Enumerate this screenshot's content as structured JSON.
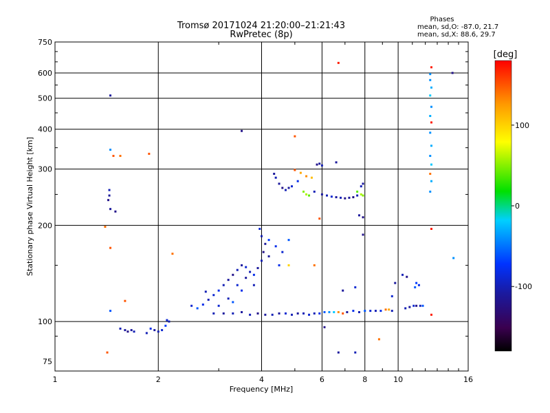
{
  "chart_data": {
    "type": "scatter",
    "title": "Tromsø 20171024 21:20:00–21:21:43",
    "subtitle": "RwPretec (8p)",
    "xlabel": "Frequency [MHz]",
    "ylabel": "Stationary phase Virtual Height [km]",
    "x_scale": "log",
    "y_scale": "log",
    "xlim": [
      1,
      16
    ],
    "ylim": [
      70,
      750
    ],
    "x_ticks": [
      1,
      2,
      4,
      6,
      8,
      10,
      16
    ],
    "x_tick_labels": [
      "1",
      "2",
      "4",
      "6",
      "8",
      "10",
      "16"
    ],
    "y_ticks": [
      75,
      100,
      200,
      300,
      400,
      500,
      600,
      750
    ],
    "y_tick_labels": [
      "75",
      "100",
      "200",
      "300",
      "400",
      "500",
      "600",
      "750"
    ],
    "grid": true,
    "legend": {
      "title": "Phases",
      "lines": [
        "mean, sd,O: -87.0, 21.7",
        "mean, sd,X: 88.6, 29.7"
      ],
      "placement": "top-right"
    },
    "colorbar": {
      "title": "[deg]",
      "range": [
        -180,
        180
      ],
      "ticks": [
        100,
        0,
        -100
      ],
      "tick_labels": [
        "100",
        "0",
        "-100"
      ]
    },
    "points": [
      [
        1.45,
        510,
        -110
      ],
      [
        1.45,
        345,
        -40
      ],
      [
        1.48,
        330,
        150
      ],
      [
        1.55,
        330,
        140
      ],
      [
        1.88,
        335,
        150
      ],
      [
        1.44,
        258,
        -100
      ],
      [
        1.44,
        248,
        -110
      ],
      [
        1.43,
        240,
        -120
      ],
      [
        1.45,
        225,
        -110
      ],
      [
        1.5,
        221,
        -120
      ],
      [
        1.4,
        198,
        140
      ],
      [
        1.45,
        170,
        150
      ],
      [
        1.6,
        116,
        150
      ],
      [
        1.45,
        108,
        -60
      ],
      [
        1.42,
        80,
        150
      ],
      [
        1.55,
        95,
        -100
      ],
      [
        1.6,
        94,
        -110
      ],
      [
        1.63,
        93,
        -120
      ],
      [
        1.67,
        94,
        -110
      ],
      [
        1.7,
        93,
        -100
      ],
      [
        1.85,
        92,
        -100
      ],
      [
        1.9,
        95,
        -80
      ],
      [
        1.95,
        94,
        -110
      ],
      [
        2.0,
        93,
        -100
      ],
      [
        2.05,
        94,
        -90
      ],
      [
        2.1,
        97,
        -70
      ],
      [
        2.12,
        101,
        -90
      ],
      [
        2.15,
        100,
        -100
      ],
      [
        2.2,
        163,
        140
      ],
      [
        2.5,
        112,
        -90
      ],
      [
        2.6,
        110,
        -60
      ],
      [
        2.7,
        113,
        -80
      ],
      [
        2.8,
        117,
        -100
      ],
      [
        2.9,
        121,
        -90
      ],
      [
        3.0,
        125,
        -80
      ],
      [
        3.1,
        130,
        -100
      ],
      [
        3.2,
        135,
        -110
      ],
      [
        3.3,
        140,
        -120
      ],
      [
        3.4,
        145,
        -100
      ],
      [
        3.5,
        150,
        -110
      ],
      [
        3.6,
        148,
        -90
      ],
      [
        3.7,
        143,
        -100
      ],
      [
        3.8,
        140,
        -80
      ],
      [
        3.9,
        147,
        -110
      ],
      [
        4.0,
        155,
        -100
      ],
      [
        4.05,
        165,
        -120
      ],
      [
        4.1,
        175,
        -110
      ],
      [
        4.0,
        185,
        -100
      ],
      [
        3.95,
        195,
        -90
      ],
      [
        4.2,
        180,
        -70
      ],
      [
        4.4,
        172,
        -80
      ],
      [
        4.6,
        165,
        -90
      ],
      [
        4.8,
        180,
        -60
      ],
      [
        3.6,
        137,
        -110
      ],
      [
        3.4,
        130,
        -90
      ],
      [
        3.2,
        118,
        -100
      ],
      [
        3.0,
        112,
        -90
      ],
      [
        2.9,
        106,
        -100
      ],
      [
        3.5,
        125,
        -80
      ],
      [
        3.8,
        130,
        -100
      ],
      [
        4.2,
        160,
        -110
      ],
      [
        4.5,
        150,
        -80
      ],
      [
        3.3,
        115,
        -60
      ],
      [
        2.75,
        124,
        -100
      ],
      [
        3.1,
        106,
        -110
      ],
      [
        3.3,
        106,
        -100
      ],
      [
        3.5,
        107,
        -110
      ],
      [
        3.7,
        105,
        -100
      ],
      [
        3.9,
        106,
        -120
      ],
      [
        4.1,
        105,
        -110
      ],
      [
        4.3,
        105,
        -100
      ],
      [
        4.5,
        106,
        -110
      ],
      [
        4.7,
        106,
        -90
      ],
      [
        4.9,
        105,
        -100
      ],
      [
        5.1,
        106,
        -110
      ],
      [
        5.3,
        106,
        -100
      ],
      [
        5.5,
        105,
        -90
      ],
      [
        5.7,
        106,
        -100
      ],
      [
        5.9,
        106,
        -80
      ],
      [
        6.1,
        107,
        -60
      ],
      [
        6.3,
        107,
        -40
      ],
      [
        6.5,
        107,
        -20
      ],
      [
        6.7,
        107,
        130
      ],
      [
        6.9,
        106,
        150
      ],
      [
        7.1,
        107,
        -110
      ],
      [
        7.4,
        108,
        -80
      ],
      [
        7.7,
        107,
        -100
      ],
      [
        8.0,
        108,
        -60
      ],
      [
        8.3,
        108,
        -90
      ],
      [
        8.6,
        108,
        -100
      ],
      [
        8.9,
        108,
        -80
      ],
      [
        9.2,
        109,
        140
      ],
      [
        9.4,
        109,
        120
      ],
      [
        9.6,
        108,
        -100
      ],
      [
        10.5,
        110,
        -100
      ],
      [
        10.8,
        111,
        -110
      ],
      [
        11.1,
        112,
        -90
      ],
      [
        11.3,
        112,
        -120
      ],
      [
        11.6,
        112,
        -100
      ],
      [
        11.8,
        112,
        -60
      ],
      [
        11.5,
        130,
        -80
      ],
      [
        11.2,
        128,
        -60
      ],
      [
        11.3,
        132,
        -70
      ],
      [
        4.35,
        290,
        -110
      ],
      [
        4.4,
        282,
        -100
      ],
      [
        4.5,
        270,
        -110
      ],
      [
        4.6,
        262,
        -120
      ],
      [
        4.7,
        258,
        -100
      ],
      [
        4.8,
        262,
        -110
      ],
      [
        4.9,
        265,
        -90
      ],
      [
        5.1,
        275,
        -80
      ],
      [
        5.0,
        298,
        150
      ],
      [
        5.2,
        292,
        120
      ],
      [
        5.4,
        285,
        130
      ],
      [
        5.6,
        282,
        110
      ],
      [
        5.8,
        310,
        -120
      ],
      [
        5.9,
        312,
        -110
      ],
      [
        6.0,
        308,
        -100
      ],
      [
        5.3,
        255,
        50
      ],
      [
        5.4,
        250,
        60
      ],
      [
        5.5,
        248,
        40
      ],
      [
        5.7,
        255,
        -100
      ],
      [
        6.0,
        250,
        -110
      ],
      [
        6.2,
        248,
        -100
      ],
      [
        6.4,
        246,
        -90
      ],
      [
        6.6,
        245,
        -110
      ],
      [
        6.8,
        244,
        -100
      ],
      [
        7.0,
        243,
        -120
      ],
      [
        7.2,
        244,
        -110
      ],
      [
        7.4,
        245,
        -120
      ],
      [
        7.6,
        248,
        -100
      ],
      [
        7.8,
        250,
        60
      ],
      [
        7.9,
        248,
        50
      ],
      [
        7.6,
        255,
        40
      ],
      [
        7.8,
        265,
        -100
      ],
      [
        7.9,
        270,
        -110
      ],
      [
        7.7,
        215,
        -110
      ],
      [
        7.9,
        212,
        -120
      ],
      [
        7.9,
        187,
        -120
      ],
      [
        6.6,
        315,
        -110
      ],
      [
        6.7,
        645,
        170
      ],
      [
        5.9,
        210,
        150
      ],
      [
        5.0,
        380,
        150
      ],
      [
        4.8,
        150,
        100
      ],
      [
        5.7,
        150,
        140
      ],
      [
        6.9,
        125,
        -110
      ],
      [
        7.5,
        128,
        -90
      ],
      [
        9.6,
        120,
        -90
      ],
      [
        9.8,
        132,
        -110
      ],
      [
        10.3,
        140,
        -100
      ],
      [
        10.6,
        138,
        -120
      ],
      [
        6.1,
        96,
        -120
      ],
      [
        6.7,
        80,
        -110
      ],
      [
        7.5,
        80,
        -100
      ],
      [
        8.8,
        88,
        140
      ],
      [
        3.5,
        395,
        -120
      ],
      [
        12.5,
        625,
        170
      ],
      [
        12.4,
        595,
        -40
      ],
      [
        12.4,
        570,
        -40
      ],
      [
        12.5,
        540,
        -30
      ],
      [
        12.4,
        510,
        -20
      ],
      [
        12.5,
        470,
        -40
      ],
      [
        12.4,
        440,
        -30
      ],
      [
        12.5,
        420,
        170
      ],
      [
        12.4,
        390,
        -40
      ],
      [
        12.5,
        355,
        -30
      ],
      [
        12.4,
        330,
        -40
      ],
      [
        12.5,
        310,
        -20
      ],
      [
        12.4,
        290,
        140
      ],
      [
        12.5,
        275,
        -30
      ],
      [
        12.4,
        255,
        -40
      ],
      [
        12.5,
        195,
        170
      ],
      [
        12.5,
        105,
        170
      ],
      [
        14.4,
        600,
        -120
      ],
      [
        14.5,
        158,
        -40
      ]
    ]
  }
}
